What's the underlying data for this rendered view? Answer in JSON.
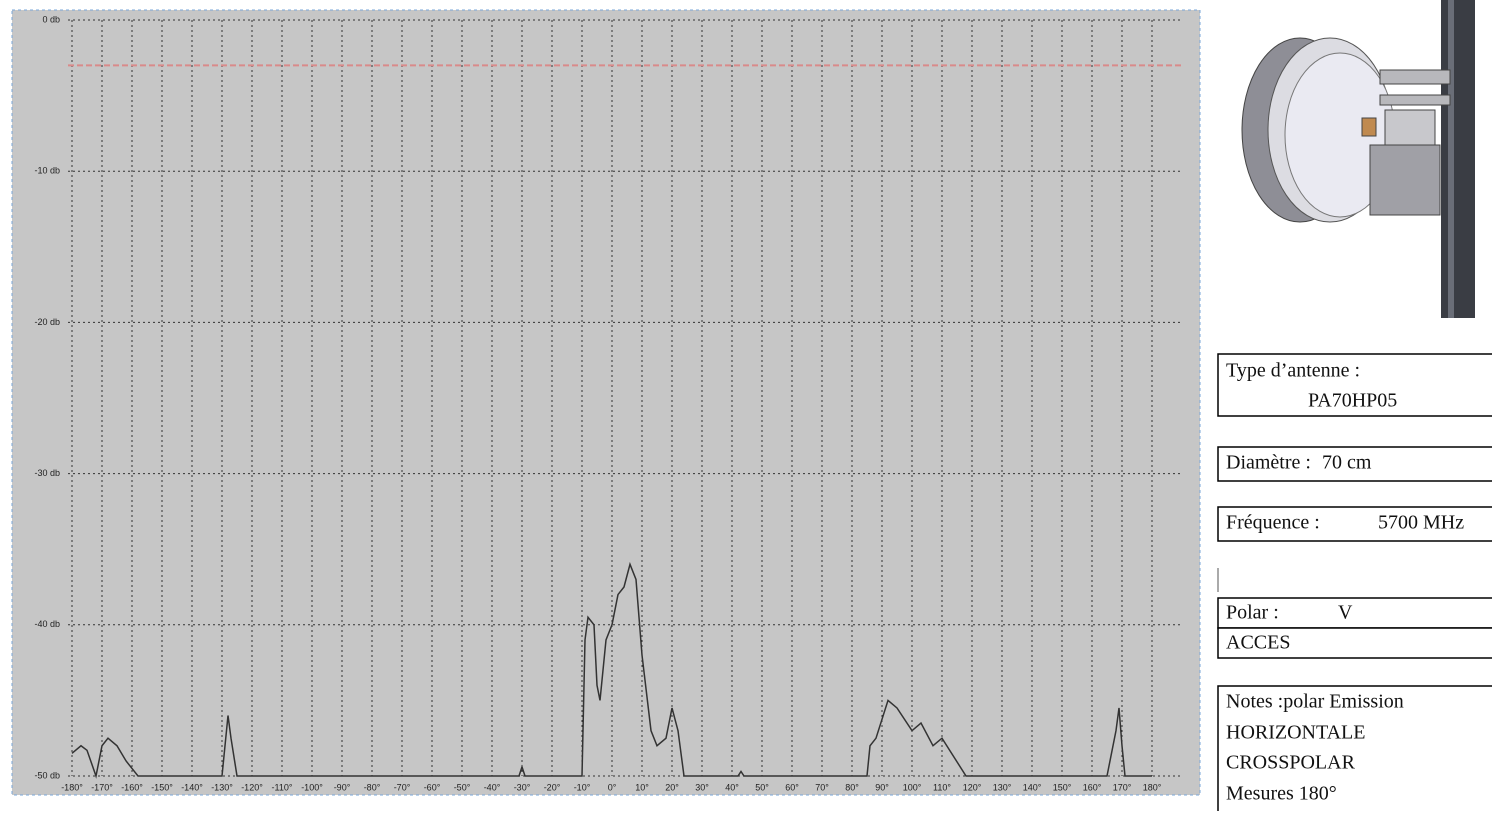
{
  "chart_data": {
    "type": "line",
    "xlim": [
      -180,
      180
    ],
    "ylim": [
      -50,
      0
    ],
    "yticks": [
      {
        "value": 0,
        "label": "0 db"
      },
      {
        "value": -10,
        "label": "-10 db"
      },
      {
        "value": -20,
        "label": "-20 db"
      },
      {
        "value": -30,
        "label": "-30 db"
      },
      {
        "value": -40,
        "label": "-40 db"
      },
      {
        "value": -50,
        "label": "-50 db"
      }
    ],
    "xticks": [
      {
        "value": -180,
        "label": "-180°"
      },
      {
        "value": -170,
        "label": "-170°"
      },
      {
        "value": -160,
        "label": "-160°"
      },
      {
        "value": -150,
        "label": "-150°"
      },
      {
        "value": -140,
        "label": "-140°"
      },
      {
        "value": -130,
        "label": "-130°"
      },
      {
        "value": -120,
        "label": "-120°"
      },
      {
        "value": -110,
        "label": "-110°"
      },
      {
        "value": -100,
        "label": "-100°"
      },
      {
        "value": -90,
        "label": "-90°"
      },
      {
        "value": -80,
        "label": "-80°"
      },
      {
        "value": -70,
        "label": "-70°"
      },
      {
        "value": -60,
        "label": "-60°"
      },
      {
        "value": -50,
        "label": "-50°"
      },
      {
        "value": -40,
        "label": "-40°"
      },
      {
        "value": -30,
        "label": "-30°"
      },
      {
        "value": -20,
        "label": "-20°"
      },
      {
        "value": -10,
        "label": "-10°"
      },
      {
        "value": 0,
        "label": "0°"
      },
      {
        "value": 10,
        "label": "10°"
      },
      {
        "value": 20,
        "label": "20°"
      },
      {
        "value": 30,
        "label": "30°"
      },
      {
        "value": 40,
        "label": "40°"
      },
      {
        "value": 50,
        "label": "50°"
      },
      {
        "value": 60,
        "label": "60°"
      },
      {
        "value": 70,
        "label": "70°"
      },
      {
        "value": 80,
        "label": "80°"
      },
      {
        "value": 90,
        "label": "90°"
      },
      {
        "value": 100,
        "label": "100°"
      },
      {
        "value": 110,
        "label": "110°"
      },
      {
        "value": 120,
        "label": "120°"
      },
      {
        "value": 130,
        "label": "130°"
      },
      {
        "value": 140,
        "label": "140°"
      },
      {
        "value": 150,
        "label": "150°"
      },
      {
        "value": 160,
        "label": "160°"
      },
      {
        "value": 170,
        "label": "170°"
      },
      {
        "value": 180,
        "label": "180°"
      }
    ],
    "grid": true,
    "reference_line": {
      "value": -3,
      "color": "#d98a8a"
    },
    "series": [
      {
        "color": "#333333",
        "x": [
          -180,
          -177,
          -175,
          -172,
          -170,
          -168,
          -165,
          -162,
          -160,
          -158,
          -130,
          -128,
          -127,
          -125,
          -31,
          -30,
          -29,
          -10,
          -9,
          -8,
          -6,
          -5,
          -4,
          -2,
          0,
          2,
          4,
          6,
          8,
          10,
          13,
          15,
          18,
          20,
          22,
          24,
          42,
          43,
          44,
          85,
          86,
          88,
          92,
          95,
          100,
          103,
          107,
          110,
          118,
          165,
          168,
          169,
          170,
          171,
          180
        ],
        "values": [
          -48.5,
          -48,
          -48.3,
          -50,
          -48,
          -47.5,
          -48,
          -49,
          -49.5,
          -50,
          -50,
          -46,
          -47.5,
          -50,
          -50,
          -49.4,
          -50,
          -50,
          -41,
          -39.5,
          -40,
          -44,
          -45,
          -41,
          -40,
          -38,
          -37.5,
          -36,
          -37,
          -42,
          -47,
          -48,
          -47.5,
          -45.5,
          -47,
          -50,
          -50,
          -49.7,
          -50,
          -50,
          -48,
          -47.5,
          -45,
          -45.5,
          -47,
          -46.5,
          -48,
          -47.5,
          -50,
          -50,
          -47,
          -45.5,
          -48,
          -50,
          -50
        ]
      }
    ]
  },
  "info": {
    "type_label": "Type d’antenne  :",
    "type_value": "PA70HP05",
    "diameter_label": "Diamètre :",
    "diameter_value": "70 cm",
    "frequency_label": "Fréquence  :",
    "frequency_value": "5700 MHz",
    "polar_label": "Polar :",
    "polar_value": "V",
    "access": "ACCES",
    "notes": [
      "Notes :polar  Emission",
      "HORIZONTALE",
      "CROSSPOLAR",
      "Mesures  180°"
    ]
  }
}
